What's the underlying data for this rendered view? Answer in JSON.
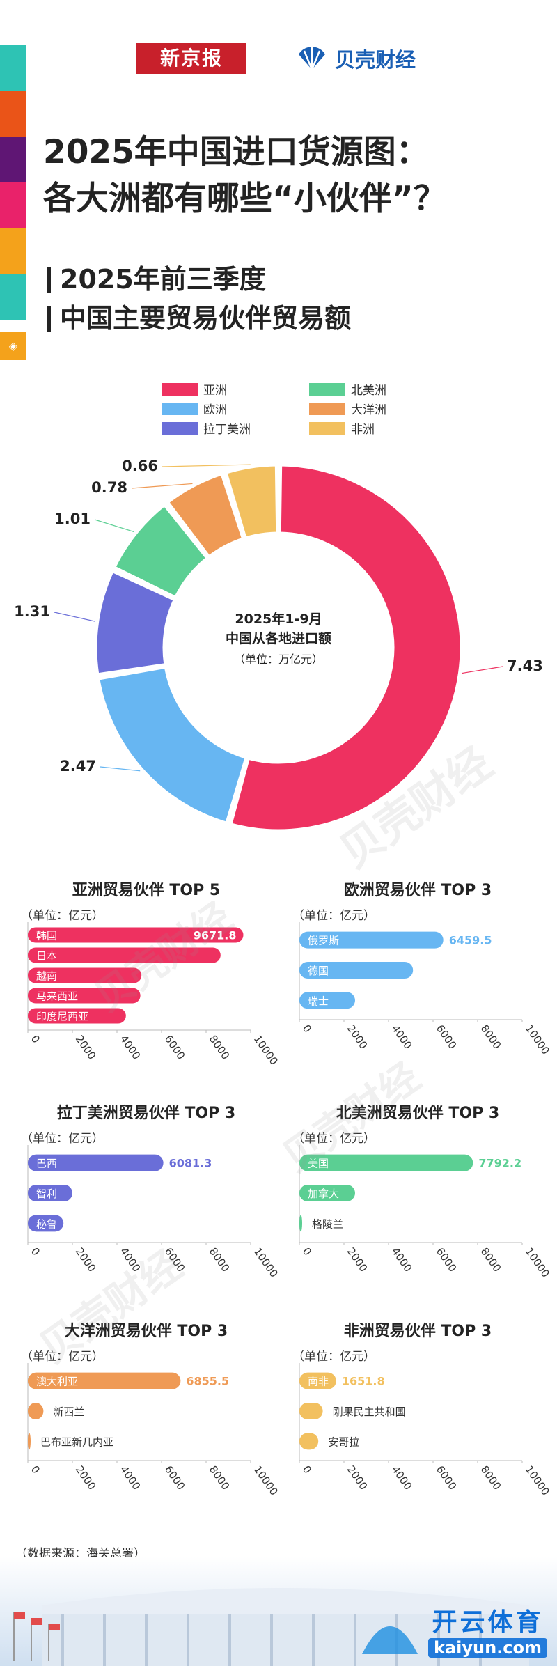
{
  "brand": {
    "xinjingbao": "新京报",
    "beike": "贝壳财经"
  },
  "title": {
    "line1": "2025年中国进口货源图：",
    "line2": "各大洲都有哪些“小伙伴”？"
  },
  "subtitle": {
    "line1": "2025年前三季度",
    "line2": "中国主要贸易伙伴贸易额"
  },
  "colors": {
    "asia": "#ee3160",
    "europe": "#67b6f2",
    "latam": "#6a6ed8",
    "namerica": "#5bcf93",
    "oceania": "#ef9a55",
    "africa": "#f2c05f",
    "strip": [
      "#2ec3b4",
      "#ea5418",
      "#5f1674",
      "#e9226a",
      "#f4a21b",
      "#2ec3b4"
    ]
  },
  "chart_data": [
    {
      "type": "pie",
      "variant": "donut",
      "center_text": [
        "2025年1-9月",
        "中国从各地进口额",
        "（单位：万亿元）"
      ],
      "categories": [
        "亚洲",
        "欧洲",
        "拉丁美洲",
        "北美洲",
        "大洋洲",
        "非洲"
      ],
      "values": [
        7.43,
        2.47,
        1.31,
        1.01,
        0.78,
        0.66
      ],
      "value_labels": [
        "7.43",
        "2.47",
        "1.31",
        "1.01",
        "0.78",
        "0.66"
      ],
      "legend": [
        "亚洲",
        "北美洲",
        "欧洲",
        "大洋洲",
        "拉丁美洲",
        "非洲"
      ],
      "legend_placement": "top"
    },
    {
      "type": "bar",
      "orientation": "horizontal",
      "title": "亚洲贸易伙伴 TOP 5",
      "unit": "（单位：亿元）",
      "categories": [
        "韩国",
        "日本",
        "越南",
        "马来西亚",
        "印度尼西亚"
      ],
      "values": [
        9671.8,
        8650,
        5100,
        5050,
        4400
      ],
      "value_labels": [
        "9671.8",
        "",
        "",
        "",
        ""
      ],
      "xlim": [
        0,
        10000
      ],
      "ticks": [
        "0",
        "2000",
        "4000",
        "6000",
        "8000",
        "10000"
      ]
    },
    {
      "type": "bar",
      "orientation": "horizontal",
      "title": "欧洲贸易伙伴 TOP 3",
      "unit": "（单位：亿元）",
      "categories": [
        "俄罗斯",
        "德国",
        "瑞士"
      ],
      "values": [
        6459.5,
        5100,
        2500
      ],
      "value_labels": [
        "6459.5",
        "",
        ""
      ],
      "xlim": [
        0,
        10000
      ],
      "ticks": [
        "0",
        "2000",
        "4000",
        "6000",
        "8000",
        "10000"
      ]
    },
    {
      "type": "bar",
      "orientation": "horizontal",
      "title": "拉丁美洲贸易伙伴 TOP 3",
      "unit": "（单位：亿元）",
      "categories": [
        "巴西",
        "智利",
        "秘鲁"
      ],
      "values": [
        6081.3,
        2000,
        1600
      ],
      "value_labels": [
        "6081.3",
        "",
        ""
      ],
      "xlim": [
        0,
        10000
      ],
      "ticks": [
        "0",
        "2000",
        "4000",
        "6000",
        "8000",
        "10000"
      ]
    },
    {
      "type": "bar",
      "orientation": "horizontal",
      "title": "北美洲贸易伙伴 TOP 3",
      "unit": "（单位：亿元）",
      "categories": [
        "美国",
        "加拿大",
        "格陵兰"
      ],
      "values": [
        7792.2,
        2500,
        60
      ],
      "value_labels": [
        "7792.2",
        "",
        ""
      ],
      "xlim": [
        0,
        10000
      ],
      "ticks": [
        "0",
        "2000",
        "4000",
        "6000",
        "8000",
        "10000"
      ]
    },
    {
      "type": "bar",
      "orientation": "horizontal",
      "title": "大洋洲贸易伙伴 TOP 3",
      "unit": "（单位：亿元）",
      "categories": [
        "澳大利亚",
        "新西兰",
        "巴布亚新几内亚"
      ],
      "values": [
        6855.5,
        700,
        100
      ],
      "value_labels": [
        "6855.5",
        "",
        ""
      ],
      "xlim": [
        0,
        10000
      ],
      "ticks": [
        "0",
        "2000",
        "4000",
        "6000",
        "8000",
        "10000"
      ]
    },
    {
      "type": "bar",
      "orientation": "horizontal",
      "title": "非洲贸易伙伴 TOP 3",
      "unit": "（单位：亿元）",
      "categories": [
        "南非",
        "刚果民主共和国",
        "安哥拉"
      ],
      "values": [
        1651.8,
        1050,
        850
      ],
      "value_labels": [
        "1651.8",
        "",
        ""
      ],
      "xlim": [
        0,
        10000
      ],
      "ticks": [
        "0",
        "2000",
        "4000",
        "6000",
        "8000",
        "10000"
      ]
    }
  ],
  "watermark": "贝壳财经",
  "source": "（数据来源：海关总署）",
  "footer_logo": {
    "top": "开云体育",
    "bottom": "kaiyun.com"
  }
}
